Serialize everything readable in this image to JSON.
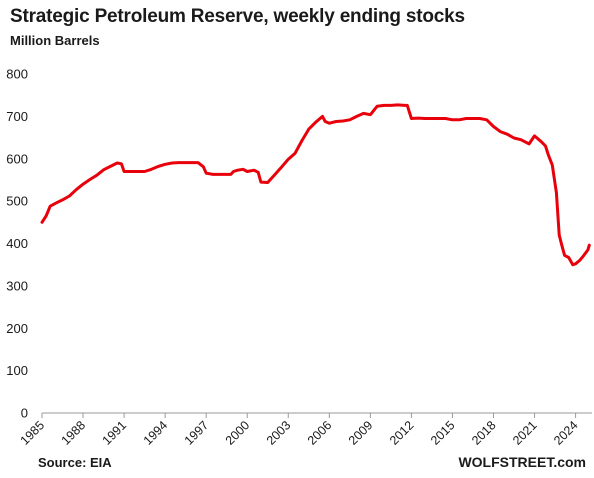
{
  "chart_data": {
    "type": "line",
    "title": "Strategic Petroleum Reserve, weekly ending stocks",
    "subtitle": "Million Barrels",
    "source": "Source: EIA",
    "credit": "WOLFSTREET.com",
    "ylim": [
      0,
      800
    ],
    "yticks": [
      0,
      100,
      200,
      300,
      400,
      500,
      600,
      700,
      800
    ],
    "xlim": [
      1985,
      2025.2
    ],
    "xticks": [
      "1985",
      "1988",
      "1991",
      "1994",
      "1997",
      "2000",
      "2003",
      "2006",
      "2009",
      "2012",
      "2015",
      "2018",
      "2021",
      "2024"
    ],
    "grid": false,
    "line_color": "#e8000b",
    "series": [
      {
        "x": [
          1985,
          1985.3,
          1985.6,
          1986,
          1986.5,
          1987,
          1987.5,
          1988,
          1988.5,
          1989,
          1989.5,
          1990,
          1990.5,
          1990.8,
          1991,
          1991.5,
          1992,
          1992.5,
          1993,
          1993.5,
          1994,
          1994.5,
          1995,
          1995.5,
          1996,
          1996.4,
          1996.8,
          1997,
          1997.5,
          1998,
          1998.5,
          1998.8,
          1999,
          1999.3,
          1999.7,
          2000,
          2000.5,
          2000.8,
          2001,
          2001.5,
          2002,
          2002.5,
          2003,
          2003.5,
          2004,
          2004.5,
          2005,
          2005.5,
          2005.7,
          2006,
          2006.5,
          2007,
          2007.5,
          2008,
          2008.5,
          2009,
          2009.5,
          2010,
          2010.5,
          2011,
          2011.5,
          2011.7,
          2012,
          2012.5,
          2013,
          2013.5,
          2014,
          2014.5,
          2015,
          2015.5,
          2016,
          2016.5,
          2017,
          2017.5,
          2018,
          2018.5,
          2019,
          2019.5,
          2020,
          2020.3,
          2020.6,
          2021,
          2021.5,
          2021.8,
          2022,
          2022.3,
          2022.6,
          2022.8,
          2023,
          2023.2,
          2023.5,
          2023.8,
          2024,
          2024.3,
          2024.6,
          2024.9,
          2025
        ],
        "values": [
          450,
          465,
          488,
          495,
          503,
          512,
          527,
          540,
          551,
          561,
          574,
          582,
          590,
          588,
          570,
          570,
          570,
          570,
          575,
          582,
          587,
          590,
          591,
          591,
          591,
          591,
          581,
          566,
          563,
          563,
          563,
          563,
          570,
          573,
          575,
          570,
          573,
          568,
          545,
          544,
          562,
          580,
          599,
          613,
          643,
          670,
          686,
          700,
          688,
          684,
          688,
          689,
          692,
          700,
          707,
          704,
          724,
          726,
          726,
          727,
          726,
          726,
          695,
          696,
          695,
          695,
          695,
          695,
          692,
          692,
          695,
          695,
          695,
          692,
          676,
          664,
          658,
          649,
          645,
          640,
          635,
          654,
          640,
          630,
          610,
          585,
          520,
          420,
          395,
          372,
          367,
          350,
          352,
          360,
          372,
          385,
          396
        ]
      }
    ]
  }
}
